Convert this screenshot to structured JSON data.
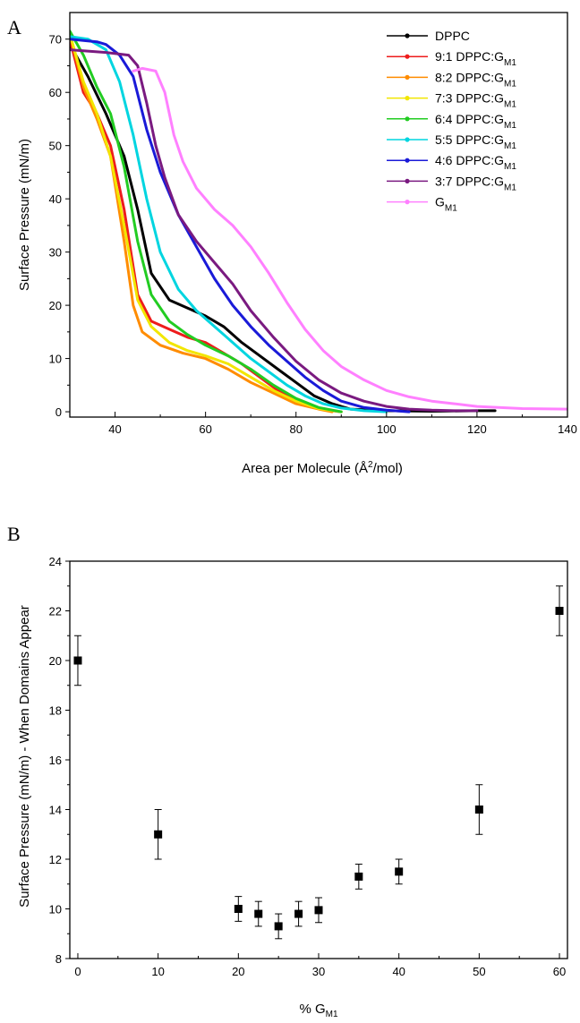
{
  "chart_data": [
    {
      "panel": "A",
      "type": "line",
      "xlabel_main": "Area per Molecule (Å",
      "xlabel_sup": "2",
      "xlabel_end": "/mol)",
      "ylabel": "Surface Pressure (mN/m)",
      "xlim": [
        30,
        140
      ],
      "ylim": [
        -1,
        75
      ],
      "xticks": [
        40,
        60,
        80,
        100,
        120,
        140
      ],
      "yticks": [
        0,
        10,
        20,
        30,
        40,
        50,
        60,
        70
      ],
      "legend_position": "top-right",
      "series": [
        {
          "name": "DPPC",
          "sub": "",
          "color": "#000000",
          "x": [
            30,
            34,
            38,
            42,
            45,
            48,
            52,
            56,
            60,
            64,
            68,
            72,
            76,
            80,
            84,
            88,
            92,
            100,
            110,
            120,
            124
          ],
          "y": [
            69,
            63,
            56,
            48,
            38,
            26,
            21,
            19.5,
            18,
            16,
            13,
            10.5,
            8,
            5.5,
            3,
            1.5,
            0.5,
            0.2,
            0.1,
            0.2,
            0.2
          ]
        },
        {
          "name": "9:1 DPPC:G",
          "sub": "M1",
          "color": "#ee1c1c",
          "x": [
            30,
            33,
            36,
            39,
            42,
            45,
            48,
            52,
            56,
            60,
            64,
            68,
            72,
            76,
            80,
            84,
            88,
            90
          ],
          "y": [
            70,
            60,
            56,
            50,
            38,
            22,
            17,
            15.5,
            14,
            13,
            11,
            9,
            6.5,
            4,
            2,
            0.8,
            0.2,
            0
          ]
        },
        {
          "name": "8:2 DPPC:G",
          "sub": "M1",
          "color": "#ff8c00",
          "x": [
            30,
            33,
            36,
            39,
            42,
            44,
            46,
            50,
            55,
            60,
            65,
            70,
            75,
            80,
            85,
            88
          ],
          "y": [
            71,
            61,
            55,
            48,
            32,
            20,
            15,
            12.5,
            11,
            10,
            8,
            5.5,
            3.5,
            1.5,
            0.5,
            0
          ]
        },
        {
          "name": "7:3 DPPC:G",
          "sub": "M1",
          "color": "#f2e600",
          "x": [
            30,
            33,
            36,
            39,
            42,
            45,
            48,
            52,
            56,
            60,
            65,
            70,
            75,
            80,
            85,
            90
          ],
          "y": [
            71,
            62,
            56,
            48,
            35,
            21,
            16,
            13,
            11.5,
            10.5,
            9,
            6.5,
            4,
            2,
            0.6,
            0
          ]
        },
        {
          "name": "6:4 DPPC:G",
          "sub": "M1",
          "color": "#22cc22",
          "x": [
            30,
            33,
            36,
            39,
            42,
            45,
            48,
            52,
            56,
            60,
            65,
            70,
            75,
            80,
            85,
            90
          ],
          "y": [
            71.5,
            67,
            61,
            56,
            46,
            32,
            22,
            17,
            14.5,
            12.5,
            10.5,
            8,
            5,
            2.5,
            0.8,
            0
          ]
        },
        {
          "name": "5:5 DPPC:G",
          "sub": "M1",
          "color": "#00d5e0",
          "x": [
            30,
            34,
            38,
            41,
            44,
            47,
            50,
            54,
            58,
            62,
            66,
            70,
            74,
            78,
            82,
            86,
            90,
            95,
            100
          ],
          "y": [
            70.5,
            70,
            68,
            62,
            52,
            40,
            30,
            23,
            19,
            16,
            13,
            10,
            7.5,
            5,
            3,
            1.5,
            0.7,
            0.2,
            0
          ]
        },
        {
          "name": "4:6 DPPC:G",
          "sub": "M1",
          "color": "#1a1ad8",
          "x": [
            30,
            36,
            38,
            41,
            44,
            47,
            50,
            54,
            58,
            62,
            66,
            70,
            74,
            78,
            82,
            86,
            90,
            95,
            100,
            105
          ],
          "y": [
            70,
            69.5,
            69,
            67,
            63,
            53,
            45,
            37,
            31,
            25,
            20,
            16,
            12.5,
            9.5,
            6.5,
            4,
            2,
            0.8,
            0.3,
            0
          ]
        },
        {
          "name": "3:7 DPPC:G",
          "sub": "M1",
          "color": "#7a1a80",
          "x": [
            30,
            38,
            43,
            45,
            47,
            49,
            51,
            54,
            58,
            62,
            66,
            70,
            75,
            80,
            85,
            90,
            95,
            100,
            105,
            110,
            115,
            120
          ],
          "y": [
            68,
            67.5,
            67,
            65,
            58,
            50,
            44,
            37,
            32,
            28,
            24,
            19,
            14,
            9.5,
            6,
            3.5,
            2,
            1,
            0.5,
            0.3,
            0.2,
            0.2
          ]
        },
        {
          "name": "G",
          "sub": "M1",
          "color": "#ff80ff",
          "x": [
            44,
            46,
            49,
            51,
            53,
            55,
            58,
            62,
            66,
            70,
            74,
            78,
            82,
            86,
            90,
            95,
            100,
            105,
            110,
            115,
            120,
            130,
            140
          ],
          "y": [
            64,
            64.5,
            64,
            60,
            52,
            47,
            42,
            38,
            35,
            31,
            26,
            20.5,
            15.5,
            11.5,
            8.5,
            6,
            4,
            2.8,
            2,
            1.5,
            1,
            0.6,
            0.5
          ]
        }
      ]
    },
    {
      "panel": "B",
      "type": "scatter",
      "xlabel_main": "% G",
      "xlabel_sub": "M1",
      "ylabel": "Surface Pressure (mN/m) - When Domains Appear",
      "xlim": [
        -1,
        61
      ],
      "ylim": [
        8,
        24
      ],
      "xticks": [
        0,
        10,
        20,
        30,
        40,
        50,
        60
      ],
      "yticks": [
        8,
        10,
        12,
        14,
        16,
        18,
        20,
        22,
        24
      ],
      "points": [
        {
          "x": 0,
          "y": 20,
          "err": 1
        },
        {
          "x": 10,
          "y": 13,
          "err": 1
        },
        {
          "x": 20,
          "y": 10,
          "err": 0.5
        },
        {
          "x": 22.5,
          "y": 9.8,
          "err": 0.5
        },
        {
          "x": 25,
          "y": 9.3,
          "err": 0.5
        },
        {
          "x": 27.5,
          "y": 9.8,
          "err": 0.5
        },
        {
          "x": 30,
          "y": 9.95,
          "err": 0.5
        },
        {
          "x": 35,
          "y": 11.3,
          "err": 0.5
        },
        {
          "x": 40,
          "y": 11.5,
          "err": 0.5
        },
        {
          "x": 50,
          "y": 14,
          "err": 1
        },
        {
          "x": 60,
          "y": 22,
          "err": 1
        }
      ]
    }
  ]
}
